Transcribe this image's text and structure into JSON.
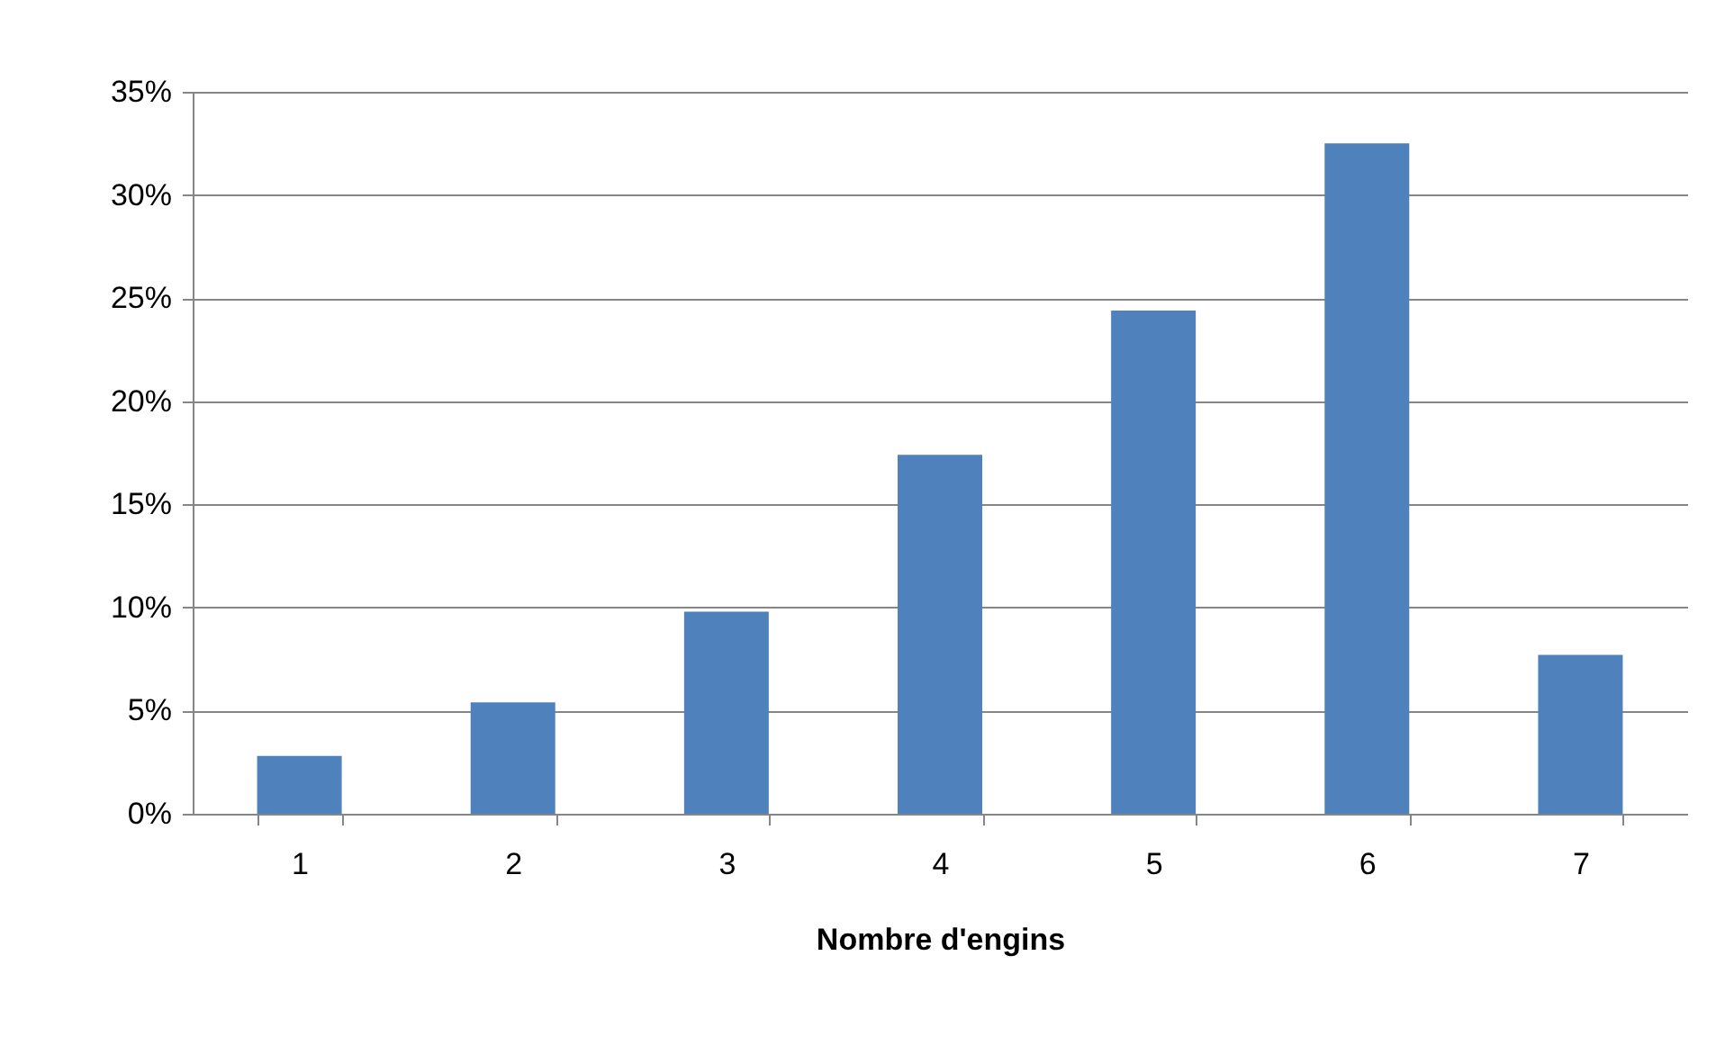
{
  "chart_data": {
    "type": "bar",
    "xlabel": "Nombre d'engins",
    "categories": [
      "1",
      "2",
      "3",
      "4",
      "5",
      "6",
      "7"
    ],
    "values": [
      2.8,
      5.4,
      9.8,
      17.4,
      24.4,
      32.5,
      7.7
    ],
    "color": "#4f81bd",
    "ylim": [
      0,
      35
    ],
    "yticks": [
      {
        "value": 0,
        "label": "0%"
      },
      {
        "value": 5,
        "label": "5%"
      },
      {
        "value": 10,
        "label": "10%"
      },
      {
        "value": 15,
        "label": "15%"
      },
      {
        "value": 20,
        "label": "20%"
      },
      {
        "value": 25,
        "label": "25%"
      },
      {
        "value": 30,
        "label": "30%"
      },
      {
        "value": 35,
        "label": "35%"
      }
    ],
    "grid": "y"
  }
}
